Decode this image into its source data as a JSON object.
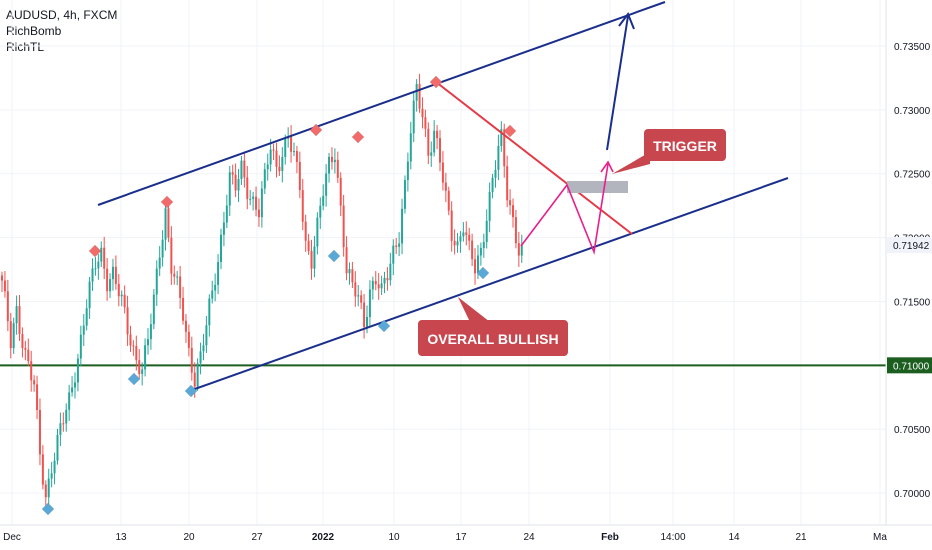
{
  "header": {
    "symbol_line": "AUDUSD, 4h, FXCM",
    "indicators": [
      "RichBomb",
      "RichTL"
    ]
  },
  "colors": {
    "up": "#26a69a",
    "down": "#ef5350",
    "channel": "#1a2e8c",
    "red_line": "#e53946",
    "support": "#1b5e20",
    "magenta": "#e91e8c",
    "label_bg": "#c8464e",
    "diamond_top": "#f26b6b",
    "diamond_bottom": "#5aa8d6"
  },
  "chart_data": {
    "type": "candlestick",
    "title": "AUDUSD, 4h, FXCM",
    "y_ticks": [
      "0.73500",
      "0.73000",
      "0.72500",
      "0.72000",
      "0.71500",
      "0.71000",
      "0.70500",
      "0.70000"
    ],
    "x_ticks": [
      "Dec",
      "13",
      "20",
      "27",
      "2022",
      "10",
      "17",
      "24",
      "Feb",
      "14:00",
      "14",
      "21",
      "Ma"
    ],
    "ylim": [
      0.6975,
      0.7386
    ],
    "current_price": "0.71942",
    "support_level": "0.71000",
    "labels": [
      "TRIGGER",
      "OVERALL BULLISH"
    ],
    "price_path": [
      [
        0,
        0.7163
      ],
      [
        3,
        0.7118
      ],
      [
        5,
        0.7145
      ],
      [
        8,
        0.7108
      ],
      [
        11,
        0.7082
      ],
      [
        13,
        0.703
      ],
      [
        15,
        0.6998
      ],
      [
        17,
        0.7022
      ],
      [
        20,
        0.7048
      ],
      [
        23,
        0.7072
      ],
      [
        26,
        0.7108
      ],
      [
        29,
        0.7148
      ],
      [
        32,
        0.7178
      ],
      [
        34,
        0.7188
      ],
      [
        36,
        0.7168
      ],
      [
        38,
        0.7172
      ],
      [
        41,
        0.7148
      ],
      [
        43,
        0.7128
      ],
      [
        46,
        0.7106
      ],
      [
        48,
        0.7098
      ],
      [
        50,
        0.7118
      ],
      [
        52,
        0.715
      ],
      [
        54,
        0.719
      ],
      [
        56,
        0.7222
      ],
      [
        58,
        0.7178
      ],
      [
        60,
        0.716
      ],
      [
        62,
        0.7138
      ],
      [
        64,
        0.711
      ],
      [
        66,
        0.7092
      ],
      [
        68,
        0.7108
      ],
      [
        70,
        0.713
      ],
      [
        72,
        0.7155
      ],
      [
        74,
        0.7182
      ],
      [
        76,
        0.7218
      ],
      [
        78,
        0.7248
      ],
      [
        80,
        0.7238
      ],
      [
        82,
        0.7252
      ],
      [
        84,
        0.7238
      ],
      [
        86,
        0.723
      ],
      [
        88,
        0.7222
      ],
      [
        90,
        0.7245
      ],
      [
        92,
        0.727
      ],
      [
        94,
        0.7255
      ],
      [
        96,
        0.7268
      ],
      [
        98,
        0.728
      ],
      [
        100,
        0.7262
      ],
      [
        102,
        0.7238
      ],
      [
        104,
        0.7195
      ],
      [
        106,
        0.7185
      ],
      [
        108,
        0.721
      ],
      [
        110,
        0.7235
      ],
      [
        112,
        0.7255
      ],
      [
        114,
        0.7268
      ],
      [
        116,
        0.7225
      ],
      [
        118,
        0.7175
      ],
      [
        120,
        0.716
      ],
      [
        122,
        0.7152
      ],
      [
        124,
        0.7134
      ],
      [
        126,
        0.716
      ],
      [
        128,
        0.7168
      ],
      [
        130,
        0.7155
      ],
      [
        132,
        0.717
      ],
      [
        134,
        0.719
      ],
      [
        136,
        0.7205
      ],
      [
        138,
        0.724
      ],
      [
        140,
        0.7282
      ],
      [
        142,
        0.7315
      ],
      [
        144,
        0.7298
      ],
      [
        146,
        0.7268
      ],
      [
        148,
        0.7282
      ],
      [
        150,
        0.7258
      ],
      [
        152,
        0.723
      ],
      [
        154,
        0.7205
      ],
      [
        156,
        0.7195
      ],
      [
        158,
        0.721
      ],
      [
        160,
        0.7188
      ],
      [
        162,
        0.7175
      ],
      [
        164,
        0.719
      ],
      [
        166,
        0.722
      ],
      [
        168,
        0.7245
      ],
      [
        170,
        0.7268
      ],
      [
        171,
        0.7275
      ],
      [
        173,
        0.7235
      ],
      [
        175,
        0.7215
      ],
      [
        177,
        0.7192
      ],
      [
        178,
        0.7194
      ]
    ]
  }
}
